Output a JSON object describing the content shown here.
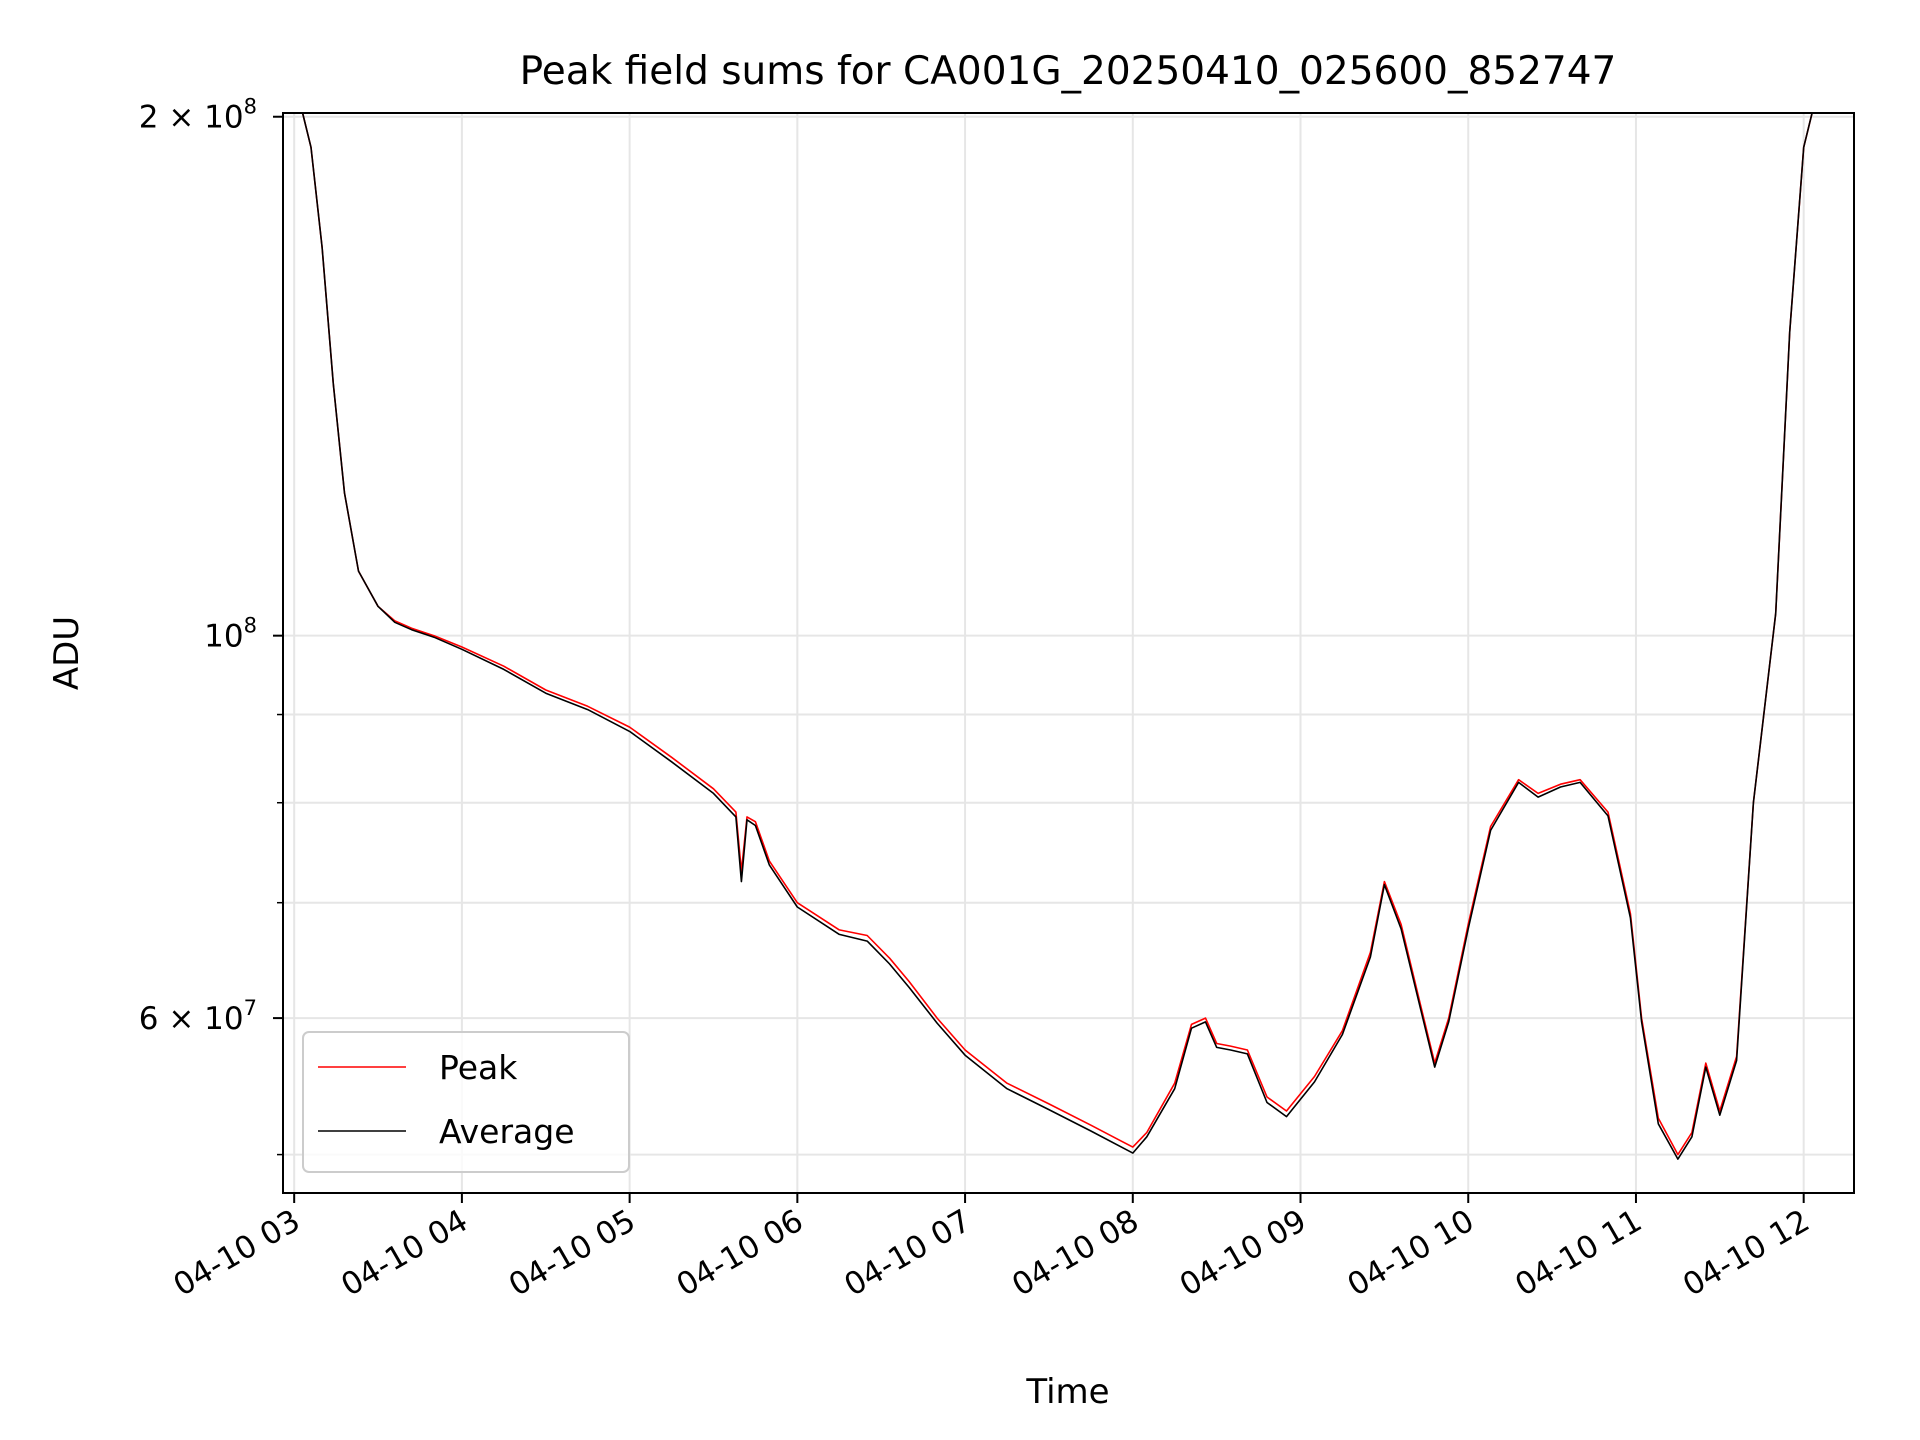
{
  "chart_data": {
    "type": "line",
    "title": "Peak field sums for CA001G_20250410_025600_852747",
    "xlabel": "Time",
    "ylabel": "ADU",
    "yscale": "log",
    "ylim": [
      47500000,
      201000000
    ],
    "xlim": [
      "2025-04-10 02:56",
      "2025-04-10 12:18"
    ],
    "grid": true,
    "legend_position": "lower-left",
    "x_ticks": [
      {
        "t": "2025-04-10 03:00",
        "label": "04-10 03"
      },
      {
        "t": "2025-04-10 04:00",
        "label": "04-10 04"
      },
      {
        "t": "2025-04-10 05:00",
        "label": "04-10 05"
      },
      {
        "t": "2025-04-10 06:00",
        "label": "04-10 06"
      },
      {
        "t": "2025-04-10 07:00",
        "label": "04-10 07"
      },
      {
        "t": "2025-04-10 08:00",
        "label": "04-10 08"
      },
      {
        "t": "2025-04-10 09:00",
        "label": "04-10 09"
      },
      {
        "t": "2025-04-10 10:00",
        "label": "04-10 10"
      },
      {
        "t": "2025-04-10 11:00",
        "label": "04-10 11"
      },
      {
        "t": "2025-04-10 12:00",
        "label": "04-10 12"
      }
    ],
    "y_major_ticks": [
      {
        "value": 200000000,
        "base": "2 × 10",
        "exp": "8"
      },
      {
        "value": 100000000,
        "base": "10",
        "exp": "8"
      },
      {
        "value": 60000000,
        "base": "6 × 10",
        "exp": "7"
      }
    ],
    "y_minor_ticks": [
      50000000,
      70000000,
      80000000,
      90000000
    ],
    "series": [
      {
        "name": "Peak",
        "color": "#ff0000",
        "x": [
          "2025-04-10 02:56",
          "2025-04-10 03:03",
          "2025-04-10 03:06",
          "2025-04-10 03:10",
          "2025-04-10 03:14",
          "2025-04-10 03:18",
          "2025-04-10 03:23",
          "2025-04-10 03:30",
          "2025-04-10 03:36",
          "2025-04-10 03:42",
          "2025-04-10 03:50",
          "2025-04-10 04:00",
          "2025-04-10 04:15",
          "2025-04-10 04:30",
          "2025-04-10 04:45",
          "2025-04-10 05:00",
          "2025-04-10 05:15",
          "2025-04-10 05:30",
          "2025-04-10 05:38",
          "2025-04-10 05:40",
          "2025-04-10 05:42",
          "2025-04-10 05:45",
          "2025-04-10 05:50",
          "2025-04-10 06:00",
          "2025-04-10 06:15",
          "2025-04-10 06:25",
          "2025-04-10 06:33",
          "2025-04-10 06:40",
          "2025-04-10 06:50",
          "2025-04-10 07:00",
          "2025-04-10 07:15",
          "2025-04-10 07:30",
          "2025-04-10 07:45",
          "2025-04-10 07:55",
          "2025-04-10 08:00",
          "2025-04-10 08:05",
          "2025-04-10 08:15",
          "2025-04-10 08:21",
          "2025-04-10 08:26",
          "2025-04-10 08:30",
          "2025-04-10 08:35",
          "2025-04-10 08:41",
          "2025-04-10 08:48",
          "2025-04-10 08:55",
          "2025-04-10 09:05",
          "2025-04-10 09:15",
          "2025-04-10 09:25",
          "2025-04-10 09:30",
          "2025-04-10 09:36",
          "2025-04-10 09:43",
          "2025-04-10 09:48",
          "2025-04-10 09:53",
          "2025-04-10 10:00",
          "2025-04-10 10:08",
          "2025-04-10 10:18",
          "2025-04-10 10:25",
          "2025-04-10 10:33",
          "2025-04-10 10:40",
          "2025-04-10 10:50",
          "2025-04-10 10:58",
          "2025-04-10 11:02",
          "2025-04-10 11:08",
          "2025-04-10 11:15",
          "2025-04-10 11:20",
          "2025-04-10 11:25",
          "2025-04-10 11:30",
          "2025-04-10 11:36",
          "2025-04-10 11:42",
          "2025-04-10 11:50",
          "2025-04-10 11:55",
          "2025-04-10 12:00",
          "2025-04-10 12:03"
        ],
        "values": [
          201000000,
          201000000,
          192000000,
          168000000,
          140000000,
          121000000,
          109000000,
          104000000,
          102000000,
          101000000,
          100000000,
          98500000,
          96000000,
          93000000,
          91000000,
          88500000,
          85000000,
          81500000,
          79000000,
          73000000,
          78500000,
          78000000,
          74000000,
          70000000,
          67500000,
          67000000,
          65000000,
          63000000,
          60000000,
          57500000,
          55000000,
          53500000,
          52000000,
          51000000,
          50500000,
          51500000,
          55000000,
          59500000,
          60000000,
          58000000,
          57800000,
          57500000,
          54000000,
          53000000,
          55500000,
          59000000,
          65500000,
          72000000,
          68000000,
          61000000,
          56500000,
          60000000,
          68000000,
          77500000,
          82500000,
          81000000,
          82000000,
          82500000,
          79000000,
          69000000,
          60000000,
          52500000,
          50000000,
          51500000,
          56500000,
          53000000,
          57000000,
          80000000,
          103000000,
          150000000,
          192000000,
          201000000
        ]
      },
      {
        "name": "Average",
        "color": "#000000",
        "x": [
          "2025-04-10 02:56",
          "2025-04-10 03:03",
          "2025-04-10 03:06",
          "2025-04-10 03:10",
          "2025-04-10 03:14",
          "2025-04-10 03:18",
          "2025-04-10 03:23",
          "2025-04-10 03:30",
          "2025-04-10 03:36",
          "2025-04-10 03:42",
          "2025-04-10 03:50",
          "2025-04-10 04:00",
          "2025-04-10 04:15",
          "2025-04-10 04:30",
          "2025-04-10 04:45",
          "2025-04-10 05:00",
          "2025-04-10 05:15",
          "2025-04-10 05:30",
          "2025-04-10 05:38",
          "2025-04-10 05:40",
          "2025-04-10 05:42",
          "2025-04-10 05:45",
          "2025-04-10 05:50",
          "2025-04-10 06:00",
          "2025-04-10 06:15",
          "2025-04-10 06:25",
          "2025-04-10 06:33",
          "2025-04-10 06:40",
          "2025-04-10 06:50",
          "2025-04-10 07:00",
          "2025-04-10 07:15",
          "2025-04-10 07:30",
          "2025-04-10 07:45",
          "2025-04-10 07:55",
          "2025-04-10 08:00",
          "2025-04-10 08:05",
          "2025-04-10 08:15",
          "2025-04-10 08:21",
          "2025-04-10 08:26",
          "2025-04-10 08:30",
          "2025-04-10 08:35",
          "2025-04-10 08:41",
          "2025-04-10 08:48",
          "2025-04-10 08:55",
          "2025-04-10 09:05",
          "2025-04-10 09:15",
          "2025-04-10 09:25",
          "2025-04-10 09:30",
          "2025-04-10 09:36",
          "2025-04-10 09:43",
          "2025-04-10 09:48",
          "2025-04-10 09:53",
          "2025-04-10 10:00",
          "2025-04-10 10:08",
          "2025-04-10 10:18",
          "2025-04-10 10:25",
          "2025-04-10 10:33",
          "2025-04-10 10:40",
          "2025-04-10 10:50",
          "2025-04-10 10:58",
          "2025-04-10 11:02",
          "2025-04-10 11:08",
          "2025-04-10 11:15",
          "2025-04-10 11:20",
          "2025-04-10 11:25",
          "2025-04-10 11:30",
          "2025-04-10 11:36",
          "2025-04-10 11:42",
          "2025-04-10 11:50",
          "2025-04-10 11:55",
          "2025-04-10 12:00",
          "2025-04-10 12:03"
        ],
        "values": [
          201000000,
          201000000,
          192000000,
          168000000,
          140000000,
          121000000,
          109000000,
          104000000,
          101800000,
          100800000,
          99800000,
          98200000,
          95600000,
          92600000,
          90600000,
          88000000,
          84500000,
          81000000,
          78500000,
          72000000,
          78200000,
          77600000,
          73600000,
          69600000,
          67100000,
          66500000,
          64500000,
          62500000,
          59600000,
          57100000,
          54600000,
          53100000,
          51600000,
          50600000,
          50100000,
          51200000,
          54600000,
          59200000,
          59700000,
          57700000,
          57500000,
          57200000,
          53600000,
          52600000,
          55100000,
          58700000,
          65100000,
          71700000,
          67600000,
          60700000,
          56200000,
          59700000,
          67600000,
          77100000,
          82200000,
          80600000,
          81700000,
          82200000,
          78600000,
          68600000,
          59700000,
          52100000,
          49700000,
          51200000,
          56200000,
          52700000,
          56700000,
          80000000,
          103000000,
          150000000,
          192000000,
          201000000
        ]
      }
    ]
  }
}
